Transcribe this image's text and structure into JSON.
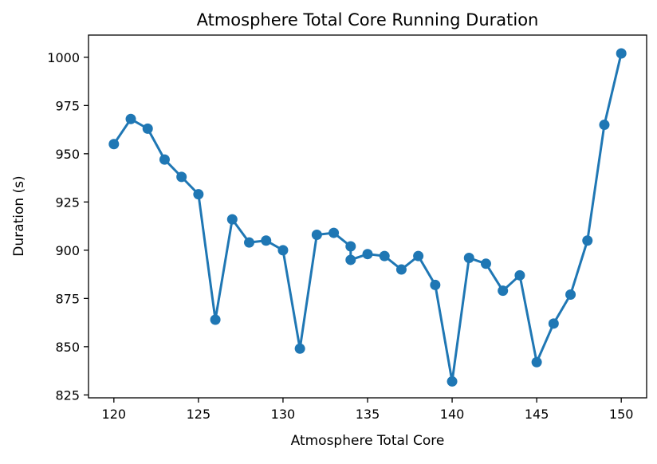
{
  "chart_data": {
    "type": "line",
    "title": "Atmosphere Total Core Running Duration",
    "xlabel": "Atmosphere Total Core",
    "ylabel": "Duration (s)",
    "xlim": [
      118.5,
      151.5
    ],
    "ylim": [
      823.5,
      1011.5
    ],
    "xticks": [
      120,
      125,
      130,
      135,
      140,
      145,
      150
    ],
    "yticks": [
      825,
      850,
      875,
      900,
      925,
      950,
      975,
      1000
    ],
    "grid": false,
    "series": [
      {
        "color": "#1f77b4",
        "x": [
          120,
          121,
          122,
          123,
          124,
          125,
          126,
          127,
          128,
          129,
          130,
          131,
          132,
          133,
          134,
          134,
          135,
          136,
          137,
          138,
          139,
          140,
          141,
          142,
          143,
          144,
          145,
          146,
          147,
          148,
          149,
          150
        ],
        "y": [
          955,
          968,
          963,
          947,
          938,
          929,
          864,
          916,
          904,
          905,
          900,
          849,
          908,
          909,
          902,
          895,
          898,
          897,
          890,
          897,
          882,
          832,
          896,
          893,
          879,
          887,
          842,
          862,
          877,
          905,
          965,
          1002
        ]
      }
    ]
  }
}
